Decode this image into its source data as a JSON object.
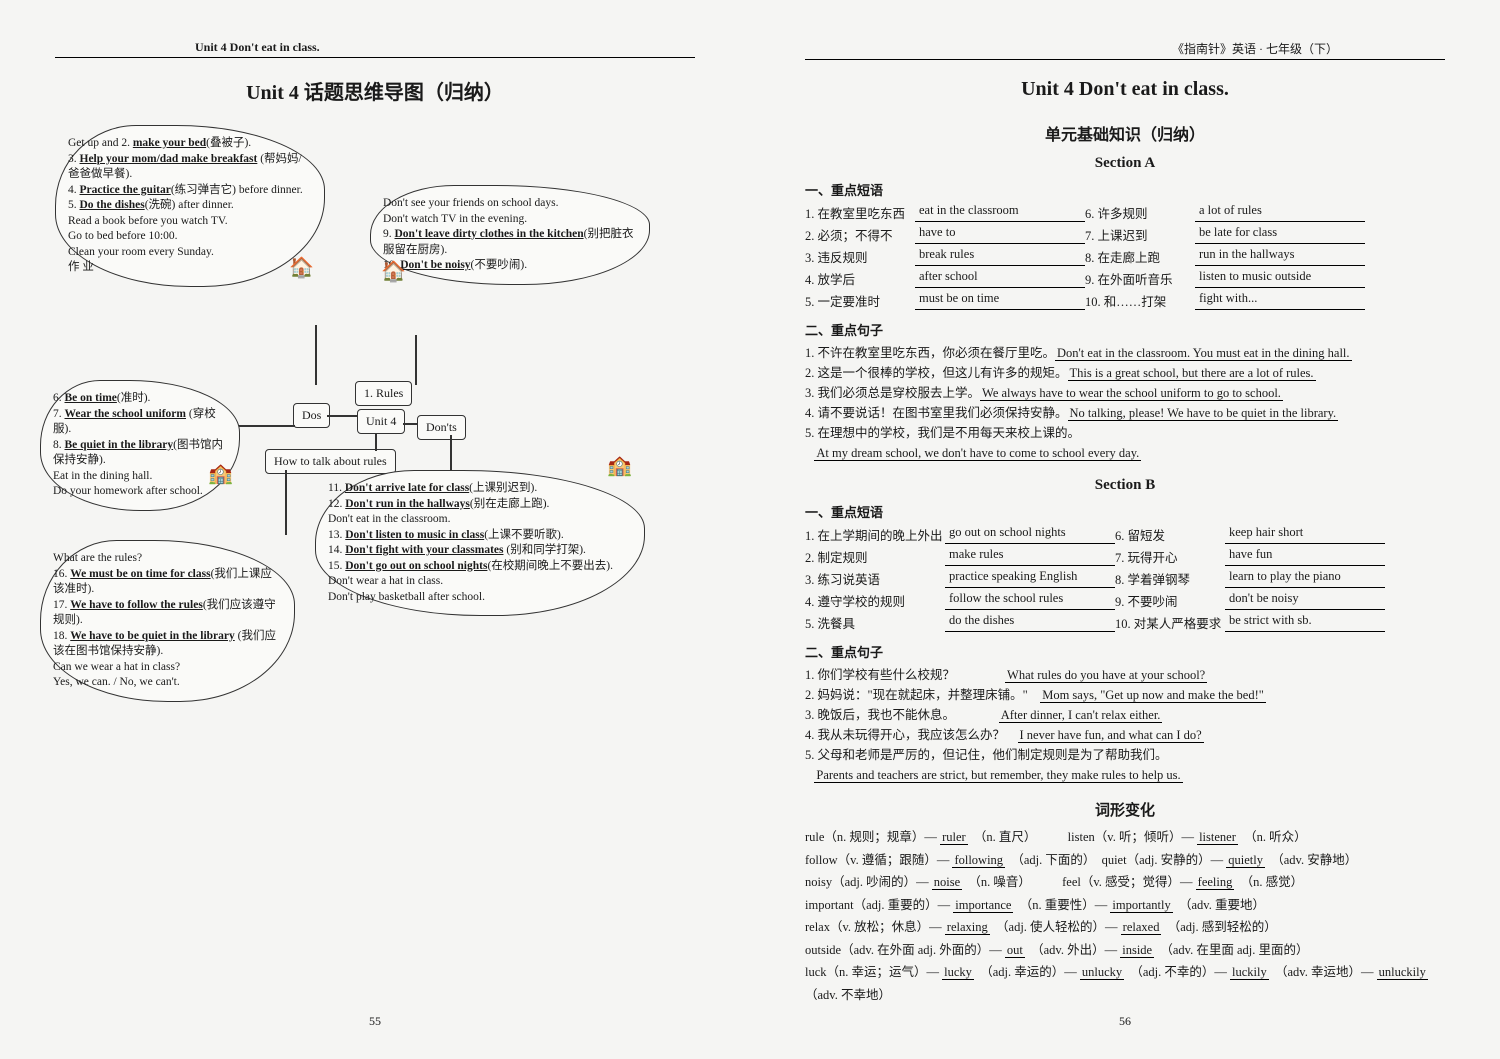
{
  "left": {
    "header": "Unit 4   Don't eat in class.",
    "title": "Unit 4   话题思维导图（归纳）",
    "center": {
      "rules": "1. Rules",
      "unit": "Unit 4",
      "dos": "Dos",
      "donts": "Don'ts",
      "howto": "How to talk about rules"
    },
    "bubble_tl_lines": [
      "Get up and 2. <u>make your bed</u>(叠被子).",
      "3. <u>Help your mom/dad make breakfast</u> (帮妈妈/爸爸做早餐).",
      "4. <u>Practice the guitar</u>(练习弹吉它) before dinner.",
      "5. <u>Do the dishes</u>(洗碗) after dinner.",
      "Read a book before you watch TV.",
      "Go to bed before 10:00.",
      "Clean your room every Sunday.",
      "作 业"
    ],
    "bubble_tr_lines": [
      "Don't see your friends on school days.",
      "Don't watch TV in the evening.",
      "9. <u>Don't leave dirty clothes in the kitchen</u>(别把脏衣服留在厨房).",
      "10. <u>Don't be noisy</u>(不要吵闹)."
    ],
    "bubble_ml_lines": [
      "6. <u>Be on time</u>(准时).",
      "7. <u>Wear the school uniform</u> (穿校服).",
      "8. <u>Be quiet in the library</u>(图书馆内保持安静).",
      "Eat in the dining hall.",
      "Do your homework after school."
    ],
    "bubble_mr_lines": [
      "11. <u>Don't arrive late for class</u>(上课别迟到).",
      "12. <u>Don't run in the hallways</u>(别在走廊上跑).",
      "Don't eat in the classroom.",
      "13. <u>Don't listen to music in class</u>(上课不要听歌).",
      "14. <u>Don't fight with your classmates</u> (别和同学打架).",
      "15. <u>Don't go out on school nights</u>(在校期间晚上不要出去).",
      "Don't wear a hat in class.",
      "Don't play basketball after school."
    ],
    "bubble_bl_lines": [
      "What are the rules?",
      "16. <u>We must be on time for class</u>(我们上课应该准时).",
      "17. <u>We have to follow the rules</u>(我们应该遵守规则).",
      "18. <u>We have to be quiet in the library</u> (我们应该在图书馆保持安静).",
      "Can we wear a hat in class?",
      "Yes, we can. / No, we can't."
    ],
    "pagenum": "55"
  },
  "right": {
    "header": "《指南针》英语 · 七年级（下）",
    "title": "Unit 4   Don't eat in class.",
    "subtitle": "单元基础知识（归纳）",
    "secA": "Section A",
    "secB": "Section B",
    "h_phr": "一、重点短语",
    "h_sent": "二、重点句子",
    "h_wf": "词形变化",
    "phrA": [
      [
        "1. 在教室里吃东西",
        "eat in the classroom",
        "6. 许多规则",
        "a lot of rules"
      ],
      [
        "2. 必须；不得不",
        "have to",
        "7. 上课迟到",
        "be late for class"
      ],
      [
        "3. 违反规则",
        "break rules",
        "8. 在走廊上跑",
        "run in the hallways"
      ],
      [
        "4. 放学后",
        "after school",
        "9. 在外面听音乐",
        "listen to music outside"
      ],
      [
        "5. 一定要准时",
        "must be on time",
        "10. 和……打架",
        "fight with..."
      ]
    ],
    "sentA": [
      "1. 不许在教室里吃东西，你必须在餐厅里吃。<u>Don't eat in the classroom. You must eat in the dining hall.</u>",
      "2. 这是一个很棒的学校，但这儿有许多的规矩。<u>This is a great school, but there are a lot of rules.</u>",
      "3. 我们必须总是穿校服去上学。<u>We always have to wear the school uniform to go to school.</u>",
      "4. 请不要说话！在图书室里我们必须保持安静。<u>No talking, please! We have to be quiet in the library.</u>",
      "5. 在理想中的学校，我们是不用每天来校上课的。<br>&nbsp;&nbsp;&nbsp;<u>At my dream school, we don't have to come to school every day.</u>"
    ],
    "phrB": [
      [
        "1. 在上学期间的晚上外出",
        "go out on school nights",
        "6. 留短发",
        "keep hair short"
      ],
      [
        "2. 制定规则",
        "make rules",
        "7. 玩得开心",
        "have fun"
      ],
      [
        "3. 练习说英语",
        "practice speaking English",
        "8. 学着弹钢琴",
        "learn to play the piano"
      ],
      [
        "4. 遵守学校的规则",
        "follow the school rules",
        "9. 不要吵闹",
        "don't be noisy"
      ],
      [
        "5. 洗餐具",
        "do the dishes",
        "10. 对某人严格要求",
        "be strict with sb."
      ]
    ],
    "sentB": [
      "1. 你们学校有些什么校规？　　　　<u>What rules do you have at your school?</u>",
      "2. 妈妈说：\"现在就起床，并整理床铺。\"　<u>Mom says, \"Get up now and make the bed!\"</u>",
      "3. 晚饭后，我也不能休息。　　　　<u>After dinner, I can't relax either.</u>",
      "4. 我从未玩得开心，我应该怎么办？　<u>I never have fun, and what can I do?</u>",
      "5. 父母和老师是严厉的，但记住，他们制定规则是为了帮助我们。<br>&nbsp;&nbsp;&nbsp;<u>Parents and teachers are strict, but remember, they make rules to help us.</u>"
    ],
    "wordforms": [
      "rule（n. 规则；规章）— <u>ruler</u>　（n. 直尺）　　　listen（v. 听；倾听）— <u>listener</u>　（n. 听众）",
      "follow（v. 遵循；跟随）— <u>following</u>　（adj. 下面的）　quiet（adj. 安静的）— <u>quietly</u>　（adv. 安静地）",
      "noisy（adj. 吵闹的）— <u>noise</u>　（n. 噪音）　　　feel（v. 感受；觉得）— <u>feeling</u>　（n. 感觉）",
      "important（adj. 重要的）— <u>importance</u>　（n. 重要性）— <u>importantly</u>　（adv. 重要地）",
      "relax（v. 放松；休息）— <u>relaxing</u>　（adj. 使人轻松的）— <u>relaxed</u>　（adj. 感到轻松的）",
      "outside（adv. 在外面 adj. 外面的）— <u>out</u>　（adv. 外出）— <u>inside</u>　（adv. 在里面 adj. 里面的）",
      "luck（n. 幸运；运气）— <u>lucky</u>　（adj. 幸运的）— <u>unlucky</u>　（adj. 不幸的）— <u>luckily</u>　（adv. 幸运地）— <u>unluckily</u>　（adv. 不幸地）"
    ],
    "pagenum": "56"
  }
}
